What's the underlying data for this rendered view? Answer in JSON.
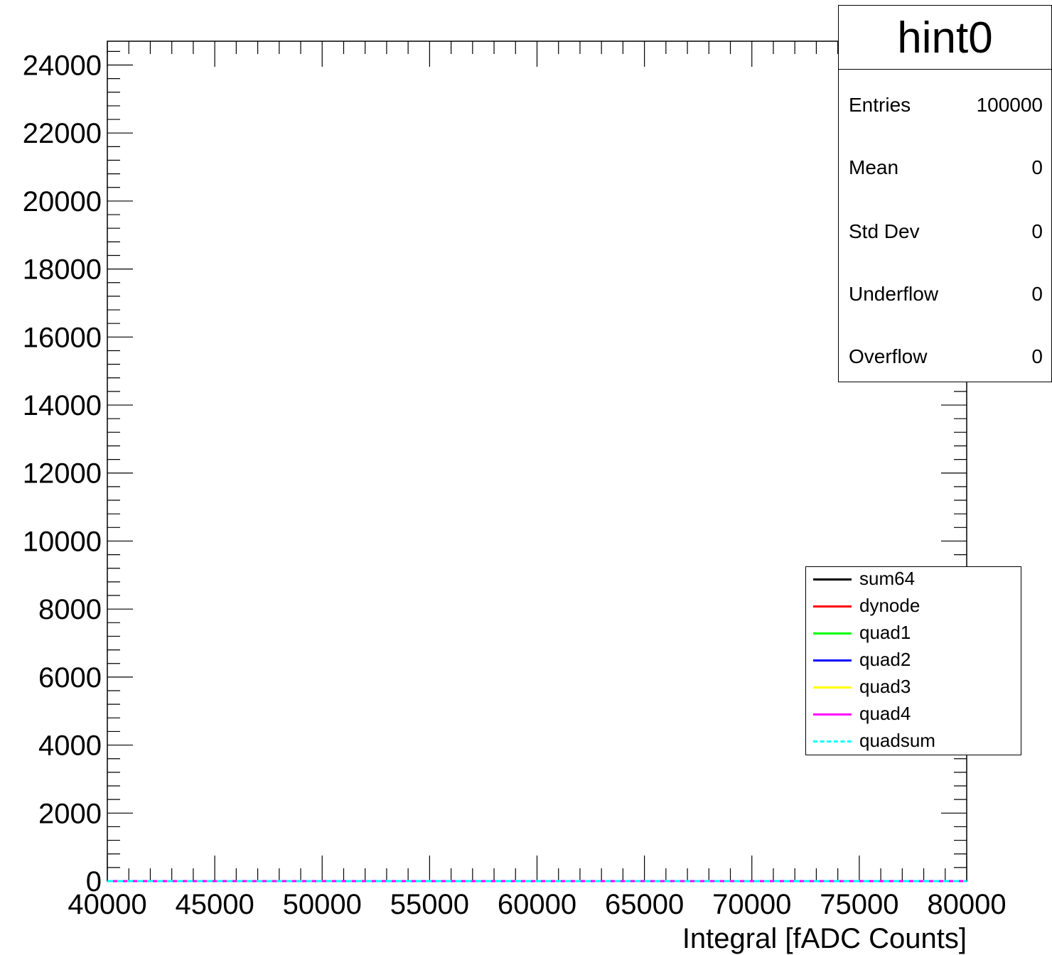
{
  "chart_data": {
    "type": "line",
    "title": "",
    "xlabel": "Integral [fADC Counts]",
    "ylabel": "",
    "xlim": [
      40000,
      80000
    ],
    "ylim": [
      0,
      24700
    ],
    "x_ticks": [
      40000,
      45000,
      50000,
      55000,
      60000,
      65000,
      70000,
      75000,
      80000
    ],
    "y_ticks": [
      0,
      2000,
      4000,
      6000,
      8000,
      10000,
      12000,
      14000,
      16000,
      18000,
      20000,
      22000,
      24000
    ],
    "x": [
      40000,
      80000
    ],
    "series": [
      {
        "name": "sum64",
        "color": "#000000",
        "dashed": false,
        "values": [
          0,
          0
        ]
      },
      {
        "name": "dynode",
        "color": "#ff0000",
        "dashed": false,
        "values": [
          0,
          0
        ]
      },
      {
        "name": "quad1",
        "color": "#00ff00",
        "dashed": false,
        "values": [
          0,
          0
        ]
      },
      {
        "name": "quad2",
        "color": "#0000ff",
        "dashed": false,
        "values": [
          0,
          0
        ]
      },
      {
        "name": "quad3",
        "color": "#ffff00",
        "dashed": false,
        "values": [
          0,
          0
        ]
      },
      {
        "name": "quad4",
        "color": "#ff00ff",
        "dashed": false,
        "values": [
          0,
          0
        ]
      },
      {
        "name": "quadsum",
        "color": "#00ffff",
        "dashed": true,
        "values": [
          0,
          0
        ]
      }
    ],
    "grid": false,
    "legend_position": "bottom-right"
  },
  "stats": {
    "title": "hint0",
    "rows": [
      {
        "key": "Entries",
        "value": "100000"
      },
      {
        "key": "Mean",
        "value": "0"
      },
      {
        "key": "Std Dev",
        "value": "0"
      },
      {
        "key": "Underflow",
        "value": "0"
      },
      {
        "key": "Overflow",
        "value": "0"
      }
    ]
  }
}
